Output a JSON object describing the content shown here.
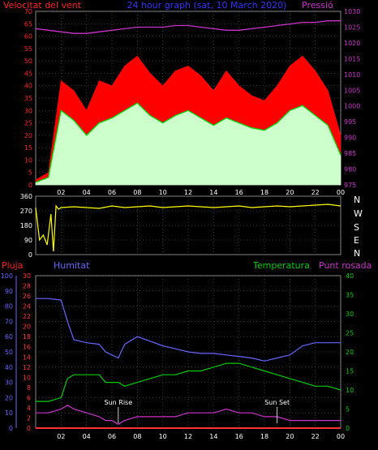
{
  "header": {
    "wind_label": "Velocitat del vent",
    "title": "24 hour graph (sat, 10 March 2020)",
    "pressure_label": "Pressió"
  },
  "labels": {
    "rain": "Pluja",
    "humidity": "Humitat",
    "temperature": "Temperatura",
    "dewpoint": "Punt rosada",
    "sunrise": "Sun Rise",
    "sunset": "Sun Set"
  },
  "direction_letters": [
    "N",
    "W",
    "S",
    "E",
    "N"
  ],
  "colors": {
    "wind_gust": "#ff0000",
    "wind_avg": "#00dd00",
    "wind_low": "#ccffcc",
    "pressure": "#cc33cc",
    "direction": "#ffff00",
    "humidity": "#6666ff",
    "temperature": "#00cc00",
    "dewpoint": "#cc33cc",
    "rain": "#ff3333",
    "grid": "#666666"
  },
  "chart_data": [
    {
      "type": "line",
      "name": "wind-pressure",
      "x_ticks": [
        "02",
        "04",
        "06",
        "08",
        "10",
        "12",
        "14",
        "16",
        "18",
        "20",
        "22",
        "00"
      ],
      "left_axis": {
        "ticks": [
          0,
          5,
          10,
          15,
          20,
          25,
          30,
          35,
          40,
          45,
          50,
          55,
          60,
          65,
          70
        ],
        "ylim": [
          0,
          70
        ]
      },
      "right_axis": {
        "ticks": [
          975,
          980,
          985,
          990,
          995,
          1000,
          1005,
          1010,
          1015,
          1020,
          1025,
          1030
        ],
        "ylim": [
          975,
          1030
        ]
      },
      "hours": [
        0,
        1,
        2,
        3,
        4,
        5,
        6,
        7,
        8,
        9,
        10,
        11,
        12,
        13,
        14,
        15,
        16,
        17,
        18,
        19,
        20,
        21,
        22,
        23,
        24
      ],
      "series": [
        {
          "key": "gust",
          "axis": "left",
          "values": [
            2,
            5,
            42,
            38,
            30,
            42,
            40,
            48,
            52,
            45,
            40,
            46,
            48,
            44,
            38,
            46,
            40,
            36,
            34,
            40,
            48,
            52,
            46,
            38,
            20
          ]
        },
        {
          "key": "avg",
          "axis": "left",
          "values": [
            1,
            3,
            30,
            26,
            20,
            25,
            27,
            30,
            33,
            28,
            25,
            28,
            30,
            27,
            24,
            27,
            25,
            23,
            22,
            25,
            30,
            32,
            28,
            24,
            12
          ]
        },
        {
          "key": "low",
          "axis": "left",
          "values": [
            0,
            2,
            20,
            14,
            10,
            15,
            16,
            18,
            20,
            16,
            14,
            17,
            18,
            16,
            14,
            16,
            14,
            13,
            12,
            15,
            18,
            20,
            16,
            13,
            5
          ]
        },
        {
          "key": "pressure",
          "axis": "right",
          "values": [
            1024.5,
            1024,
            1023.5,
            1023,
            1023,
            1023.5,
            1024,
            1024.5,
            1025,
            1025,
            1025,
            1025.5,
            1025.5,
            1025,
            1024.5,
            1024,
            1024,
            1024.5,
            1025,
            1025.5,
            1026,
            1026.5,
            1026.5,
            1027,
            1027
          ]
        }
      ]
    },
    {
      "type": "line",
      "name": "wind-direction",
      "y_ticks": [
        0,
        90,
        180,
        270,
        360
      ],
      "ylim": [
        0,
        360
      ],
      "hours": [
        0,
        0.3,
        0.6,
        0.9,
        1.2,
        1.4,
        1.6,
        1.8,
        2,
        3,
        4,
        5,
        6,
        7,
        8,
        9,
        10,
        11,
        12,
        13,
        14,
        15,
        16,
        17,
        18,
        19,
        20,
        21,
        22,
        23,
        24
      ],
      "values": [
        290,
        90,
        120,
        60,
        250,
        20,
        300,
        280,
        290,
        295,
        290,
        285,
        300,
        290,
        295,
        300,
        290,
        295,
        300,
        295,
        290,
        295,
        300,
        290,
        295,
        300,
        295,
        300,
        305,
        310,
        300
      ]
    },
    {
      "type": "line",
      "name": "humidity-temperature",
      "x_ticks": [
        "02",
        "04",
        "06",
        "08",
        "10",
        "12",
        "14",
        "16",
        "18",
        "20",
        "22",
        "00"
      ],
      "humidity_axis": {
        "ticks": [
          0,
          10,
          20,
          30,
          40,
          50,
          60,
          70,
          80,
          90,
          100
        ],
        "ylim": [
          0,
          100
        ]
      },
      "rain_axis": {
        "ticks": [
          0,
          2,
          4,
          6,
          8,
          10,
          12,
          14,
          16,
          18,
          20,
          22,
          24,
          26,
          28,
          30
        ],
        "ylim": [
          0,
          30
        ]
      },
      "temperature_axis": {
        "ticks": [
          0,
          5,
          10,
          15,
          20,
          25,
          30,
          35,
          40
        ],
        "ylim": [
          0,
          40
        ]
      },
      "hours": [
        0,
        1,
        2,
        2.5,
        3,
        4,
        5,
        5.5,
        6,
        6.5,
        7,
        8,
        9,
        10,
        11,
        12,
        13,
        14,
        15,
        16,
        17,
        18,
        19,
        20,
        21,
        22,
        23,
        24
      ],
      "series": [
        {
          "key": "humidity",
          "axis": "humidity",
          "values": [
            85,
            85,
            84,
            70,
            58,
            56,
            55,
            50,
            48,
            46,
            55,
            60,
            57,
            54,
            52,
            50,
            49,
            49,
            48,
            47,
            46,
            44,
            46,
            48,
            54,
            56,
            56,
            56
          ]
        },
        {
          "key": "temperature",
          "axis": "temperature",
          "values": [
            7,
            7,
            8,
            13,
            14,
            14,
            14,
            12,
            12,
            12,
            11,
            12,
            13,
            14,
            14,
            15,
            15,
            16,
            17,
            17,
            16,
            15,
            14,
            13,
            12,
            11,
            11,
            10
          ]
        },
        {
          "key": "dewpoint",
          "axis": "temperature",
          "values": [
            4,
            4,
            5,
            6,
            5,
            4,
            3,
            2,
            2,
            1,
            2,
            3,
            3,
            3,
            3,
            4,
            4,
            4,
            5,
            4,
            4,
            3,
            3,
            2,
            2,
            2,
            2,
            2
          ]
        },
        {
          "key": "rain",
          "axis": "rain",
          "values": [
            0,
            0,
            0,
            0,
            0,
            0,
            0,
            0,
            0,
            0,
            0,
            0,
            0,
            0,
            0,
            0,
            0,
            0,
            0,
            0,
            0,
            0,
            0,
            0,
            0,
            0,
            0,
            0
          ]
        }
      ],
      "annotations": [
        {
          "key": "sunrise",
          "hour": 6.5
        },
        {
          "key": "sunset",
          "hour": 19
        }
      ]
    }
  ]
}
